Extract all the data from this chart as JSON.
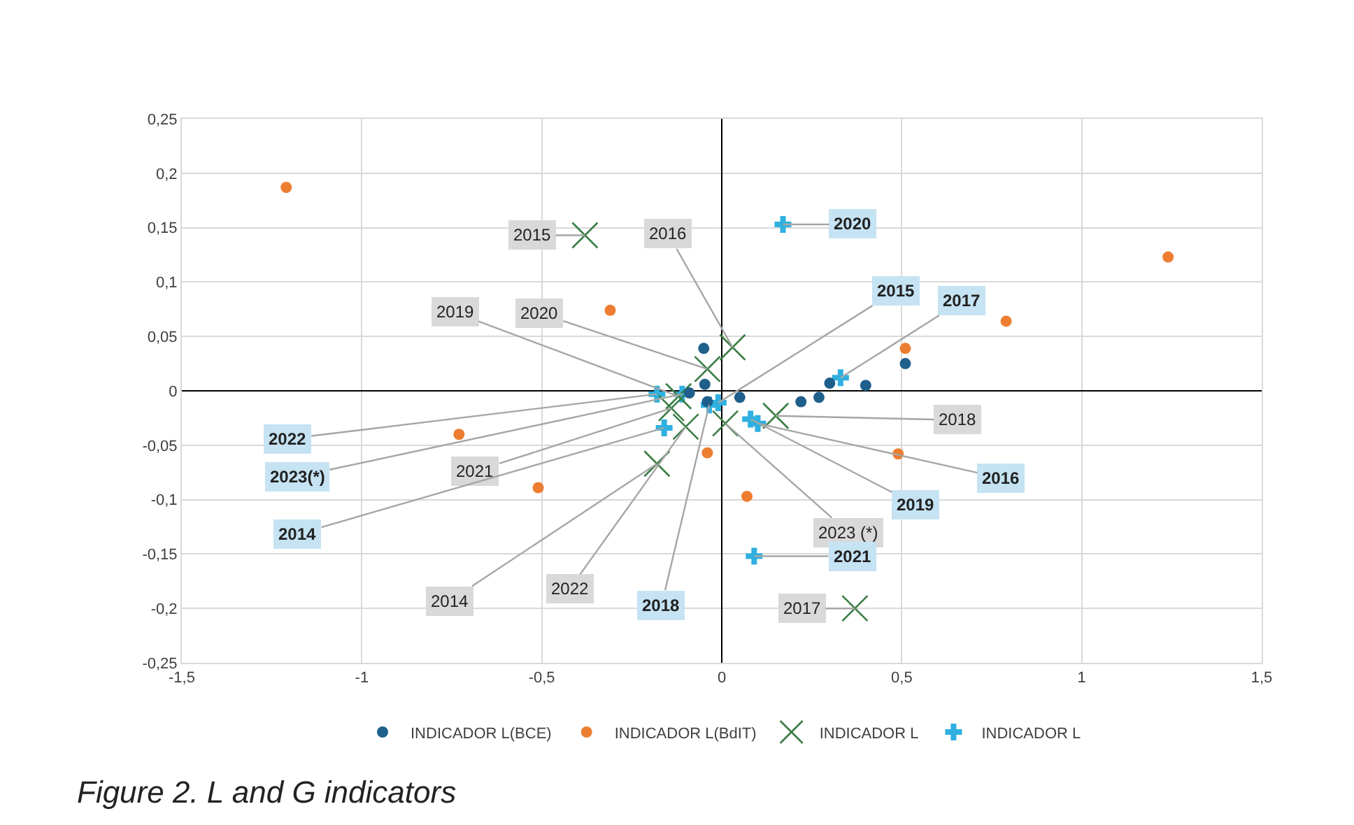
{
  "chart_data": {
    "type": "scatter",
    "annotations": [
      "Figure 2. L and G indicators",
      {
        "text": "2014",
        "x": -0.18,
        "y": -0.067
      },
      {
        "text": "2015",
        "x": -0.38,
        "y": 0.143
      },
      {
        "text": "2016",
        "x": 0.03,
        "y": 0.04
      },
      {
        "text": "2017",
        "x": 0.37,
        "y": -0.2
      },
      {
        "text": "2018",
        "x": 0.15,
        "y": -0.023
      },
      {
        "text": "2019",
        "x": -0.12,
        "y": -0.005
      },
      {
        "text": "2020",
        "x": -0.04,
        "y": 0.02
      },
      {
        "text": "2021",
        "x": -0.14,
        "y": -0.016
      },
      {
        "text": "2022",
        "x": -0.1,
        "y": -0.033
      },
      {
        "text": "2023 (*)",
        "x": 0.01,
        "y": -0.03
      },
      {
        "text": "2014",
        "x": -0.16,
        "y": -0.034
      },
      {
        "text": "2015",
        "x": -0.01,
        "y": -0.011
      },
      {
        "text": "2016",
        "x": 0.1,
        "y": -0.03
      },
      {
        "text": "2017",
        "x": 0.33,
        "y": 0.012
      },
      {
        "text": "2018",
        "x": -0.035,
        "y": -0.013
      },
      {
        "text": "2019",
        "x": 0.08,
        "y": -0.026
      },
      {
        "text": "2020",
        "x": 0.17,
        "y": 0.153
      },
      {
        "text": "2021",
        "x": 0.09,
        "y": -0.152
      },
      {
        "text": "2022",
        "x": -0.18,
        "y": -0.003
      },
      {
        "text": "2023(*)",
        "x": -0.11,
        "y": -0.003
      }
    ],
    "xlim": [
      -1.5,
      1.5
    ],
    "xticks": [
      {
        "value": -1.5,
        "label": "-1,5"
      },
      -1,
      {
        "value": -0.5,
        "label": "-0,5"
      },
      0,
      {
        "value": 0.5,
        "label": "0,5"
      },
      1,
      {
        "value": 1.5,
        "label": "1,5"
      }
    ],
    "ylim": [
      -0.25,
      0.25
    ],
    "yticks": [
      {
        "value": -0.25,
        "label": "-0,25"
      },
      {
        "value": -0.2,
        "label": "-0,2"
      },
      {
        "value": -0.15,
        "label": "-0,15"
      },
      {
        "value": -0.1,
        "label": "-0,1"
      },
      {
        "value": -0.05,
        "label": "-0,05"
      },
      0,
      {
        "value": 0.05,
        "label": "0,05"
      },
      {
        "value": 0.1,
        "label": "0,1"
      },
      {
        "value": 0.15,
        "label": "0,15"
      },
      {
        "value": 0.2,
        "label": "0,2"
      },
      {
        "value": 0.25,
        "label": "0,25"
      }
    ],
    "grid": true,
    "legend": "bottom",
    "series": [
      {
        "name": "INDICADOR L(BCE)",
        "color": "#1f5f8b",
        "marker": "circle",
        "x": [
          -0.05,
          -0.047,
          -0.09,
          -0.04,
          0.05,
          0.22,
          0.27,
          0.3,
          0.4,
          0.51
        ],
        "values": [
          0.039,
          0.006,
          -0.002,
          -0.01,
          -0.006,
          -0.01,
          -0.006,
          0.007,
          0.005,
          0.025
        ]
      },
      {
        "name": "INDICADOR L(BdIT)",
        "color": "#ed7d31",
        "marker": "circle",
        "x": [
          -1.21,
          -0.31,
          -0.73,
          -0.51,
          -0.04,
          0.07,
          0.49,
          0.51,
          0.79,
          1.24
        ],
        "values": [
          0.187,
          0.074,
          -0.04,
          -0.089,
          -0.057,
          -0.097,
          -0.058,
          0.039,
          0.064,
          0.123
        ]
      },
      {
        "name": "INDICADOR L",
        "color": "#3a7d44",
        "marker": "x",
        "x": [
          -0.18,
          -0.38,
          0.03,
          0.37,
          0.15,
          -0.12,
          -0.04,
          -0.14,
          -0.1,
          0.01
        ],
        "values": [
          -0.067,
          0.143,
          0.04,
          -0.2,
          -0.023,
          -0.005,
          0.02,
          -0.016,
          -0.033,
          -0.03
        ]
      },
      {
        "name": "INDICADOR L",
        "color": "#2fb0e0",
        "marker": "cross",
        "x": [
          -0.16,
          -0.01,
          0.1,
          0.33,
          -0.035,
          0.08,
          0.17,
          0.09,
          -0.18,
          -0.11
        ],
        "values": [
          -0.034,
          -0.011,
          -0.03,
          0.012,
          -0.013,
          -0.026,
          0.153,
          -0.152,
          -0.003,
          -0.003
        ]
      }
    ]
  }
}
